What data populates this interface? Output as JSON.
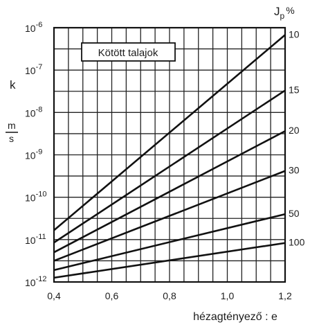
{
  "chart_data": {
    "type": "line",
    "title": "Kötött talajok",
    "xlabel": "hézagtényező : e",
    "ylabel": "k",
    "ylabel_unit_num": "m",
    "ylabel_unit_den": "s",
    "legend_title": "J",
    "legend_title_sub": "p",
    "legend_title_unit": "%",
    "y_scale": "log",
    "xlim": [
      0.4,
      1.2
    ],
    "ylim": [
      -12,
      -6
    ],
    "x_ticks": [
      {
        "value": 0.4,
        "label": "0,4"
      },
      {
        "value": 0.6,
        "label": "0,6"
      },
      {
        "value": 0.8,
        "label": "0,8"
      },
      {
        "value": 1.0,
        "label": "1,0"
      },
      {
        "value": 1.2,
        "label": "1,2"
      }
    ],
    "y_ticks": [
      {
        "exp": -6,
        "base": "10",
        "sup": "-6"
      },
      {
        "exp": -7,
        "base": "10",
        "sup": "-7"
      },
      {
        "exp": -8,
        "base": "10",
        "sup": "-8"
      },
      {
        "exp": -9,
        "base": "10",
        "sup": "-9"
      },
      {
        "exp": -10,
        "base": "10",
        "sup": "-10"
      },
      {
        "exp": -11,
        "base": "10",
        "sup": "-11"
      },
      {
        "exp": -12,
        "base": "10",
        "sup": "-12"
      }
    ],
    "grid": true,
    "series": [
      {
        "name": "10",
        "x": [
          0.4,
          1.2
        ],
        "y_exp": [
          -10.78,
          -6.17
        ]
      },
      {
        "name": "15",
        "x": [
          0.4,
          1.2
        ],
        "y_exp": [
          -11.07,
          -7.48
        ]
      },
      {
        "name": "20",
        "x": [
          0.4,
          1.2
        ],
        "y_exp": [
          -11.3,
          -8.44
        ]
      },
      {
        "name": "30",
        "x": [
          0.4,
          1.2
        ],
        "y_exp": [
          -11.5,
          -9.38
        ]
      },
      {
        "name": "50",
        "x": [
          0.4,
          1.2
        ],
        "y_exp": [
          -11.72,
          -10.4
        ]
      },
      {
        "name": "100",
        "x": [
          0.4,
          1.2
        ],
        "y_exp": [
          -11.9,
          -11.08
        ]
      }
    ]
  }
}
